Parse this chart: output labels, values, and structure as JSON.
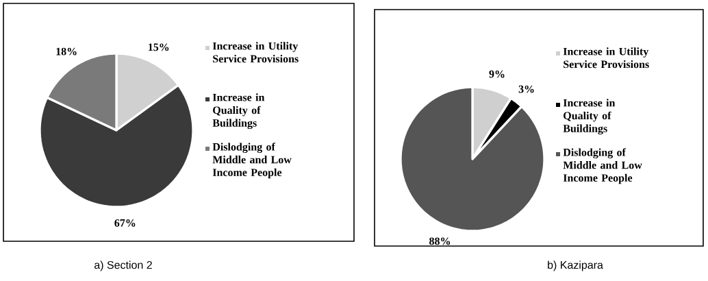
{
  "chart_data": [
    {
      "type": "pie",
      "categories": [
        "Increase in Utility Service Provisions",
        "Increase in Quality of Buildings",
        "Dislodging of Middle and Low Income People"
      ],
      "values": [
        15,
        67,
        18
      ],
      "colors": [
        "#d0d0d0",
        "#3a3a3a",
        "#7a7a7a"
      ],
      "value_labels": [
        "15%",
        "67%",
        "18%"
      ],
      "legend": "right",
      "annotations": [
        "a)    Section 2"
      ]
    },
    {
      "type": "pie",
      "categories": [
        "Increase in Utility Service Provisions",
        "Increase in Quality of Buildings",
        "Dislodging of Middle and Low Income People"
      ],
      "values": [
        9,
        3,
        88
      ],
      "colors": [
        "#cfcfcf",
        "#000000",
        "#555555"
      ],
      "value_labels": [
        "9%",
        "3%",
        "88%"
      ],
      "legend": "right",
      "annotations": [
        "b) Kazipara"
      ]
    }
  ]
}
